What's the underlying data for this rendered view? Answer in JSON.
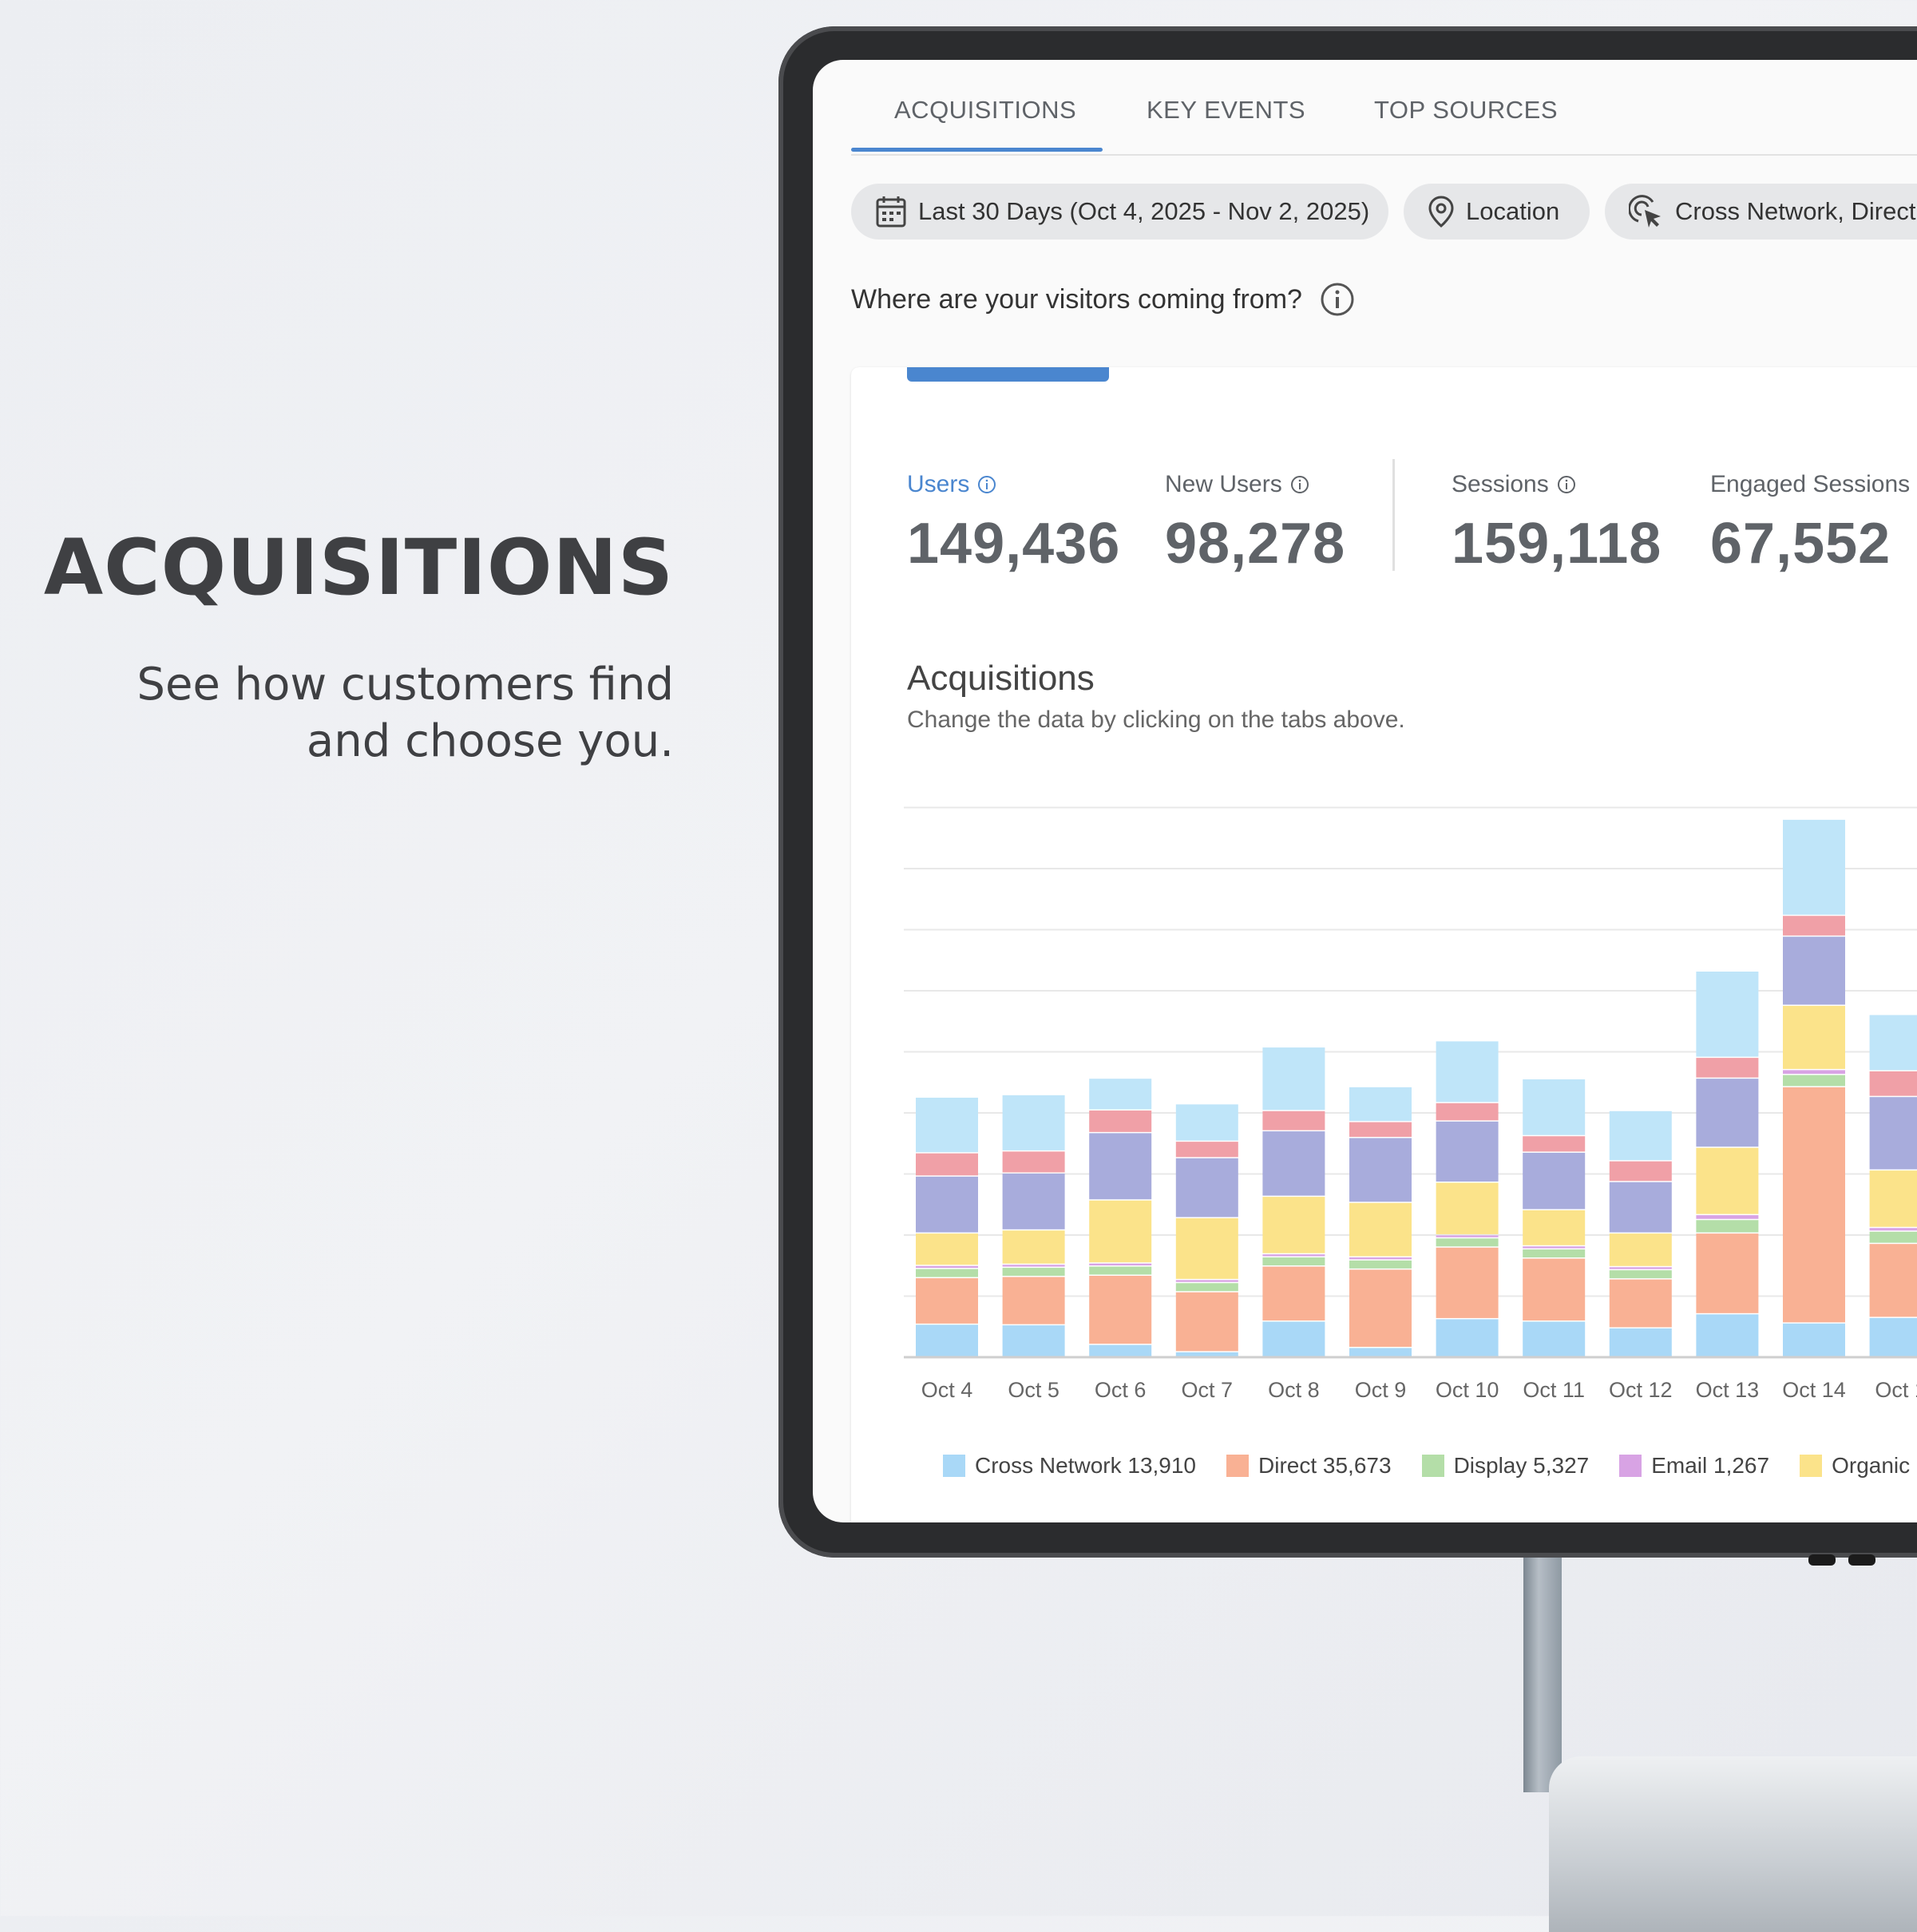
{
  "promo": {
    "title": "ACQUISITIONS",
    "subtitle_line1": "See how customers find",
    "subtitle_line2": "and choose you."
  },
  "tabs": [
    {
      "label": "ACQUISITIONS",
      "active": true
    },
    {
      "label": "KEY EVENTS",
      "active": false
    },
    {
      "label": "TOP SOURCES",
      "active": false
    }
  ],
  "filters": {
    "date": "Last 30 Days (Oct 4, 2025 - Nov 2, 2025)",
    "location": "Location",
    "channels": "Cross Network, Direct,"
  },
  "question": "Where are your visitors coming from?",
  "metrics": [
    {
      "label": "Users",
      "value": "149,436",
      "active": true
    },
    {
      "label": "New Users",
      "value": "98,278",
      "active": false
    },
    {
      "label": "Sessions",
      "value": "159,118",
      "active": false
    },
    {
      "label": "Engaged Sessions",
      "value": "67,552",
      "active": false
    }
  ],
  "chart_title": "Acquisitions",
  "chart_subtitle": "Change the data by clicking on the tabs above.",
  "colors": {
    "accent": "#4a86cf",
    "cross_network": "#a9d8f7",
    "direct": "#f9b194",
    "display": "#b4dea8",
    "email": "#d8a3e4",
    "organic": "#fbe38a",
    "indigo": "#a8acdc",
    "red": "#f0a0a7",
    "light_blue": "#bfe5f9"
  },
  "chart_data": {
    "type": "bar",
    "stacked": true,
    "grid": true,
    "ylim": [
      0,
      9
    ],
    "categories": [
      "Oct 4",
      "Oct 5",
      "Oct 6",
      "Oct 7",
      "Oct 8",
      "Oct 9",
      "Oct 10",
      "Oct 11",
      "Oct 12",
      "Oct 13",
      "Oct 14",
      "Oct 1"
    ],
    "series": [
      {
        "name": "Cross Network",
        "color": "#a9d8f7",
        "values": [
          0.53,
          0.52,
          0.2,
          0.08,
          0.58,
          0.15,
          0.62,
          0.58,
          0.47,
          0.7,
          0.55,
          0.64
        ]
      },
      {
        "name": "Direct",
        "color": "#f9b194",
        "values": [
          0.76,
          0.79,
          1.13,
          0.98,
          0.9,
          1.28,
          1.17,
          1.03,
          0.8,
          1.32,
          3.86,
          1.21
        ]
      },
      {
        "name": "Display",
        "color": "#b4dea8",
        "values": [
          0.15,
          0.15,
          0.15,
          0.15,
          0.15,
          0.15,
          0.15,
          0.15,
          0.15,
          0.22,
          0.2,
          0.2
        ]
      },
      {
        "name": "Email",
        "color": "#d8a3e4",
        "values": [
          0.05,
          0.05,
          0.05,
          0.05,
          0.05,
          0.05,
          0.05,
          0.05,
          0.05,
          0.08,
          0.08,
          0.06
        ]
      },
      {
        "name": "Organic",
        "color": "#fbe38a",
        "values": [
          0.53,
          0.56,
          1.03,
          1.01,
          0.94,
          0.89,
          0.86,
          0.59,
          0.55,
          1.1,
          1.05,
          0.94
        ]
      },
      {
        "name": "",
        "color": "#a8acdc",
        "values": [
          0.93,
          0.93,
          1.1,
          0.98,
          1.07,
          1.06,
          1.0,
          0.94,
          0.84,
          1.13,
          1.13,
          1.2
        ]
      },
      {
        "name": "",
        "color": "#f0a0a7",
        "values": [
          0.38,
          0.36,
          0.37,
          0.27,
          0.33,
          0.26,
          0.3,
          0.27,
          0.34,
          0.34,
          0.34,
          0.42
        ]
      },
      {
        "name": "",
        "color": "#bfe5f9",
        "values": [
          0.91,
          0.92,
          0.52,
          0.61,
          1.04,
          0.57,
          1.01,
          0.93,
          0.82,
          1.41,
          1.57,
          0.92
        ]
      }
    ]
  },
  "legend": [
    {
      "label": "Cross Network 13,910",
      "color": "#a9d8f7"
    },
    {
      "label": "Direct 35,673",
      "color": "#f9b194"
    },
    {
      "label": "Display 5,327",
      "color": "#b4dea8"
    },
    {
      "label": "Email 1,267",
      "color": "#d8a3e4"
    },
    {
      "label": "Organic",
      "color": "#fbe38a"
    }
  ]
}
